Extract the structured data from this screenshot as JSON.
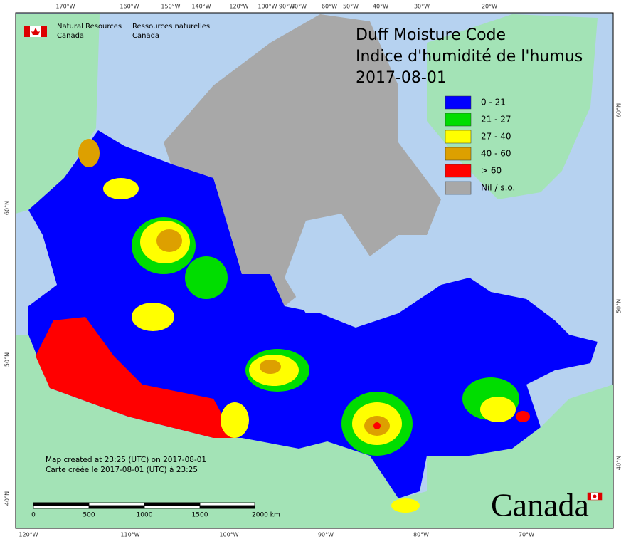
{
  "header": {
    "department_en": [
      "Natural Resources",
      "Canada"
    ],
    "department_fr": [
      "Ressources naturelles",
      "Canada"
    ]
  },
  "title": {
    "lines": [
      "Duff Moisture Code",
      "Indice d'humidité de l'humus",
      "2017-08-01"
    ]
  },
  "legend": [
    {
      "label": "0 - 21",
      "color": "#0000ff"
    },
    {
      "label": "21 - 27",
      "color": "#00dd00"
    },
    {
      "label": "27 - 40",
      "color": "#ffff00"
    },
    {
      "label": "40 - 60",
      "color": "#dda000"
    },
    {
      "label": "> 60",
      "color": "#ff0000"
    },
    {
      "label": "Nil / s.o.",
      "color": "#a8a8a8"
    }
  ],
  "graticule": {
    "top": [
      "170°W",
      "160°W",
      "150°W",
      "140°W",
      "120°W",
      "100°W",
      "90°W",
      "80°W",
      "60°W",
      "50°W",
      "40°W",
      "30°W",
      "20°W"
    ],
    "bottom": [
      "120°W",
      "110°W",
      "100°W",
      "90°W",
      "80°W",
      "70°W"
    ],
    "left": [
      "60°N",
      "50°N",
      "40°N"
    ],
    "right": [
      "60°N",
      "50°N",
      "40°N"
    ]
  },
  "footer": {
    "lines": [
      "Map created at 23:25 (UTC) on 2017-08-01",
      "Carte créée le 2017-08-01 (UTC) à 23:25"
    ]
  },
  "scale_bar": {
    "labels": [
      "0",
      "500",
      "1000",
      "1500",
      "2000 km"
    ]
  },
  "wordmark": "Canada"
}
